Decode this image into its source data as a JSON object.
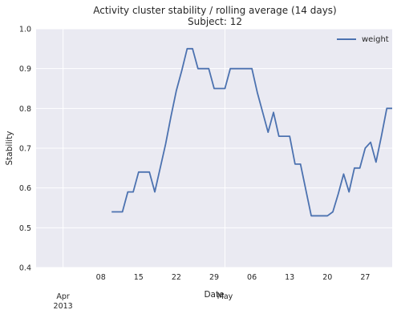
{
  "chart_data": {
    "type": "line",
    "title": "Activity cluster stability / rolling average (14 days)",
    "subtitle": "Subject: 12",
    "xlabel": "Date",
    "ylabel": "Stability",
    "ylim": [
      0.4,
      1.0
    ],
    "xlim": [
      "2013-03-27",
      "2013-06-01"
    ],
    "y_ticks": [
      "0.4",
      "0.5",
      "0.6",
      "0.7",
      "0.8",
      "0.9",
      "1.0"
    ],
    "x_minor_ticks": [
      {
        "date": "2013-04-08",
        "label": "08"
      },
      {
        "date": "2013-04-15",
        "label": "15"
      },
      {
        "date": "2013-04-22",
        "label": "22"
      },
      {
        "date": "2013-04-29",
        "label": "29"
      },
      {
        "date": "2013-05-06",
        "label": "06"
      },
      {
        "date": "2013-05-13",
        "label": "13"
      },
      {
        "date": "2013-05-20",
        "label": "20"
      },
      {
        "date": "2013-05-27",
        "label": "27"
      }
    ],
    "x_major_ticks": [
      {
        "date": "2013-04-01",
        "label": "Apr\n2013"
      },
      {
        "date": "2013-05-01",
        "label": "May"
      }
    ],
    "grid": true,
    "legend_position": "top-right",
    "series": [
      {
        "name": "weight",
        "color": "#4c72b0",
        "x": [
          "2013-04-10",
          "2013-04-11",
          "2013-04-12",
          "2013-04-13",
          "2013-04-14",
          "2013-04-15",
          "2013-04-16",
          "2013-04-17",
          "2013-04-18",
          "2013-04-19",
          "2013-04-20",
          "2013-04-21",
          "2013-04-22",
          "2013-04-23",
          "2013-04-24",
          "2013-04-25",
          "2013-04-26",
          "2013-04-27",
          "2013-04-28",
          "2013-04-29",
          "2013-04-30",
          "2013-05-01",
          "2013-05-02",
          "2013-05-03",
          "2013-05-04",
          "2013-05-05",
          "2013-05-06",
          "2013-05-07",
          "2013-05-08",
          "2013-05-09",
          "2013-05-10",
          "2013-05-11",
          "2013-05-12",
          "2013-05-13",
          "2013-05-14",
          "2013-05-15",
          "2013-05-16",
          "2013-05-17",
          "2013-05-18",
          "2013-05-19",
          "2013-05-20",
          "2013-05-21",
          "2013-05-22",
          "2013-05-23",
          "2013-05-24",
          "2013-05-25",
          "2013-05-26",
          "2013-05-27",
          "2013-05-28",
          "2013-05-29",
          "2013-05-30",
          "2013-05-31",
          "2013-06-01"
        ],
        "values": [
          0.54,
          0.54,
          0.54,
          0.59,
          0.59,
          0.64,
          0.64,
          0.64,
          0.59,
          0.65,
          0.71,
          0.78,
          0.845,
          0.895,
          0.95,
          0.95,
          0.9,
          0.9,
          0.9,
          0.85,
          0.85,
          0.85,
          0.9,
          0.9,
          0.9,
          0.9,
          0.9,
          0.84,
          0.79,
          0.74,
          0.79,
          0.73,
          0.73,
          0.73,
          0.66,
          0.66,
          0.595,
          0.53,
          0.53,
          0.53,
          0.53,
          0.54,
          0.585,
          0.635,
          0.59,
          0.65,
          0.65,
          0.7,
          0.715,
          0.665,
          0.73,
          0.8,
          0.8
        ]
      }
    ]
  }
}
